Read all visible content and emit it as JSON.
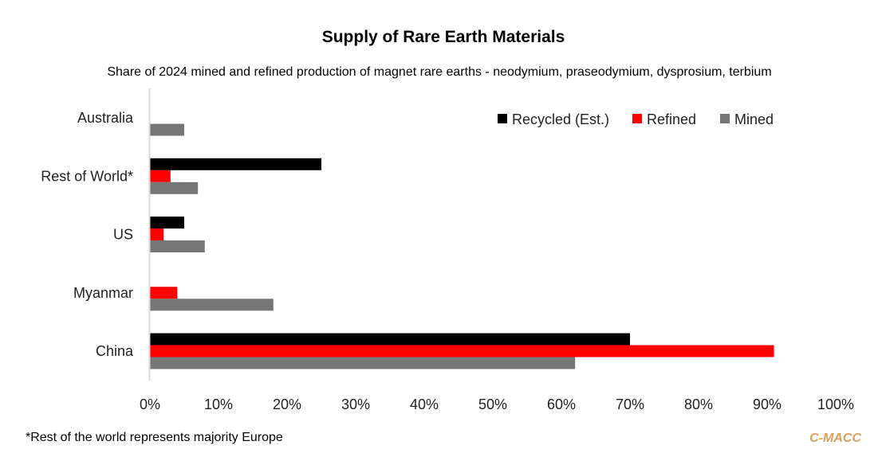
{
  "chart_data": {
    "type": "bar",
    "orientation": "horizontal",
    "title": "Supply of Rare Earth Materials",
    "subtitle": "Share of 2024  mined and refined production of magnet rare earths - neodymium, praseodymium, dysprosium, terbium",
    "categories": [
      "Australia",
      "Rest of World*",
      "US",
      "Myanmar",
      "China"
    ],
    "series": [
      {
        "name": "Recycled (Est.)",
        "color": "#000000",
        "values": [
          0,
          25,
          5,
          0,
          70
        ]
      },
      {
        "name": "Refined",
        "color": "#ff0000",
        "values": [
          0,
          3,
          2,
          4,
          91
        ]
      },
      {
        "name": "Mined",
        "color": "#767676",
        "values": [
          5,
          7,
          8,
          18,
          62
        ]
      }
    ],
    "xlim": [
      0,
      100
    ],
    "x_ticks": [
      "0%",
      "10%",
      "20%",
      "30%",
      "40%",
      "50%",
      "60%",
      "70%",
      "80%",
      "90%",
      "100%"
    ],
    "xlabel": "",
    "ylabel": "",
    "grid": false,
    "legend_position": "top-right",
    "footnote": "*Rest of the world represents majority Europe",
    "brand": "C-MACC"
  }
}
